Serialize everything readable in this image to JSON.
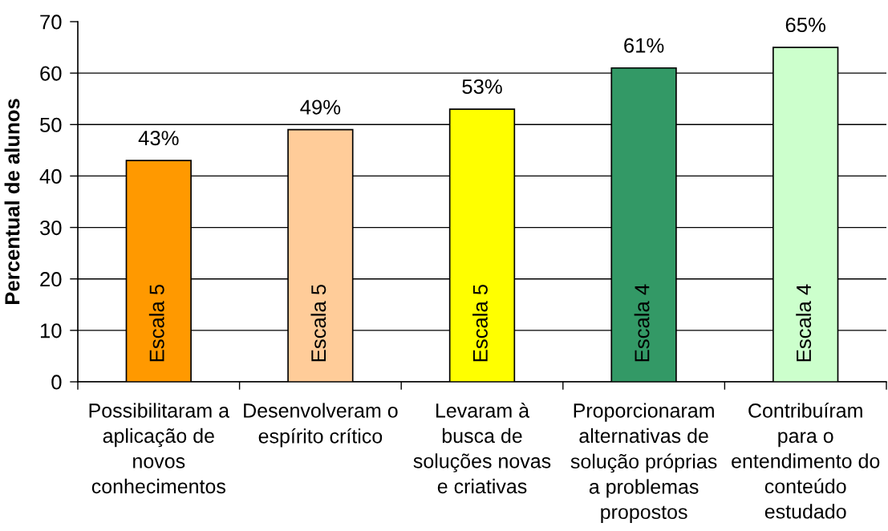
{
  "chart_data": {
    "type": "bar",
    "ylabel": "Percentual de alunos",
    "categories": [
      "Possibilitaram a\naplicação de\nnovos\nconhecimentos",
      "Desenvolveram o\nespírito crítico",
      "Levaram à\nbusca de\nsoluções novas\ne criativas",
      "Proporcionaram\nalternativas de\nsolução próprias\na problemas\npropostos",
      "Contribuíram\npara o\nentendimento do\nconteúdo\nestudado"
    ],
    "values": [
      43,
      49,
      53,
      61,
      65
    ],
    "value_labels": [
      "43%",
      "49%",
      "53%",
      "61%",
      "65%"
    ],
    "colors": [
      "#ff9900",
      "#ffcc99",
      "#ffff00",
      "#339966",
      "#ccffcc"
    ],
    "annotations": [
      {
        "text": "Escala 5",
        "x": "Possibilitaram a\naplicação de\nnovos\nconhecimentos",
        "y": 0
      },
      {
        "text": "Escala 5",
        "x": "Desenvolveram o\nespírito crítico",
        "y": 0
      },
      {
        "text": "Escala 5",
        "x": "Levaram à\nbusca de\nsoluções novas\ne criativas",
        "y": 0
      },
      {
        "text": "Escala 4",
        "x": "Proporcionaram\nalternativas de\nsolução próprias\na problemas\npropostos",
        "y": 0
      },
      {
        "text": "Escala 4",
        "x": "Contribuíram\npara o\nentendimento do\nconteúdo\nestudado",
        "y": 0
      }
    ],
    "ylim": [
      0,
      70
    ],
    "yticks": [
      0,
      10,
      20,
      30,
      40,
      50,
      60,
      70
    ],
    "grid": "y",
    "legend": false
  }
}
